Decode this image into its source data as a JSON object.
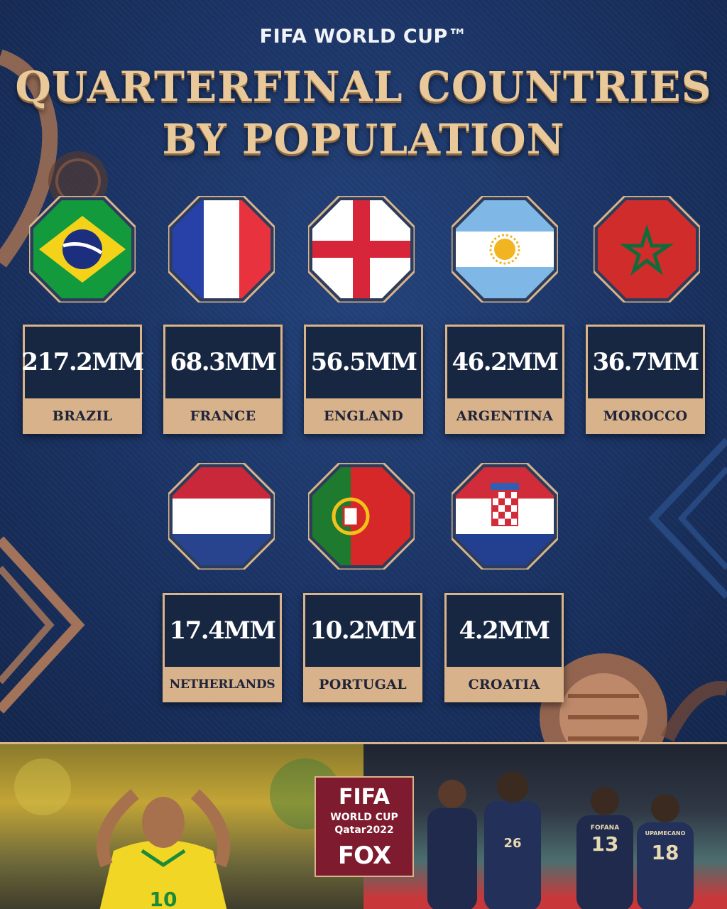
{
  "header": {
    "supertitle": "FIFA WORLD CUP™",
    "title_line1": "QUARTERFINAL COUNTRIES",
    "title_line2": "BY POPULATION"
  },
  "countries": [
    {
      "name": "BRAZIL",
      "population": "217.2MM",
      "flag": "brazil-flag"
    },
    {
      "name": "FRANCE",
      "population": "68.3MM",
      "flag": "france-flag"
    },
    {
      "name": "ENGLAND",
      "population": "56.5MM",
      "flag": "england-flag"
    },
    {
      "name": "ARGENTINA",
      "population": "46.2MM",
      "flag": "argentina-flag"
    },
    {
      "name": "MOROCCO",
      "population": "36.7MM",
      "flag": "morocco-flag"
    },
    {
      "name": "NETHERLANDS",
      "population": "17.4MM",
      "flag": "netherlands-flag"
    },
    {
      "name": "PORTUGAL",
      "population": "10.2MM",
      "flag": "portugal-flag"
    },
    {
      "name": "CROATIA",
      "population": "4.2MM",
      "flag": "croatia-flag"
    }
  ],
  "logo": {
    "line1": "FIFA",
    "line2": "WORLD CUP",
    "line3": "Qatar2022",
    "line4": "FOX"
  },
  "photos": {
    "left_jersey_number": "10",
    "right_jersey_numbers": [
      "26",
      "13",
      "18"
    ],
    "right_jersey_names": [
      "FOFANA",
      "UPAMECANO"
    ]
  },
  "colors": {
    "gold": "#e9c89a",
    "card_border": "#d9b48a",
    "card_bg": "#182741",
    "navy": "#1b2f55"
  }
}
